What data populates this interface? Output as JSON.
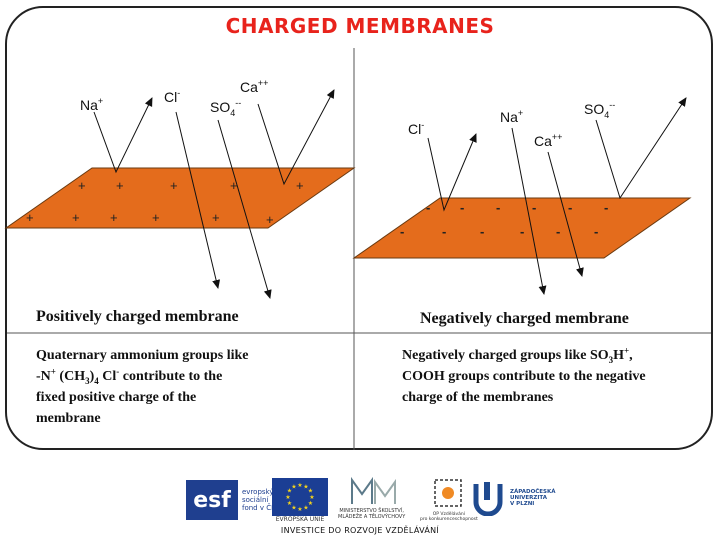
{
  "title": "CHARGED MEMBRANES",
  "left": {
    "caption": "Positively charged membrane",
    "desc_lines": [
      "Quaternary ammonium groups like",
      "contribute to the",
      "fixed positive charge of  the",
      "membrane"
    ],
    "desc_formula": {
      "n": "-N",
      "plus": "+",
      "ch": "(CH",
      "three": "3",
      "close": ")",
      "four": "4",
      "cl": "Cl",
      "minus": "-"
    },
    "ions": {
      "na": "Na",
      "na_charge": "+",
      "cl": "Cl",
      "cl_charge": "-",
      "so4": "SO",
      "so4_sub": "4",
      "so4_charge": "--",
      "ca": "Ca",
      "ca_charge": "++"
    },
    "charge_symbol": "+"
  },
  "right": {
    "caption": "Negatively charged membrane",
    "desc_line1_pre": "Negatively charged groups like SO",
    "desc_line1_sub": "3",
    "desc_line1_h": "H",
    "desc_line1_sup": "+",
    "desc_line1_post": ",",
    "desc_lines": [
      "COOH groups contribute to the negative",
      "charge of  the membranes"
    ],
    "ions": {
      "na": "Na",
      "na_charge": "+",
      "cl": "Cl",
      "cl_charge": "-",
      "so4": "SO",
      "so4_sub": "4",
      "so4_charge": "--",
      "ca": "Ca",
      "ca_charge": "++"
    },
    "charge_symbol": "-"
  },
  "footer": {
    "esf_logo": "esf",
    "esf_text": [
      "evropský",
      "sociální",
      "fond v ČR"
    ],
    "eu_label": "EVROPSKÁ UNIE",
    "msmt_label": [
      "MINISTERSTVO ŠKOLSTVÍ,",
      "MLÁDEŽE A TĚLOVÝCHOVY"
    ],
    "op_label": [
      "OP Vzdělávání",
      "pro konkurenceschopnost"
    ],
    "zcu_label": [
      "ZÁPADOČESKÁ",
      "UNIVERZITA",
      "V PLZNI"
    ],
    "tagline": "INVESTICE DO ROZVOJE VZDĚLÁVÁNÍ"
  },
  "colors": {
    "membrane": "#e46c1c",
    "title": "#e8231c",
    "eu_blue": "#1b3e94",
    "eu_star": "#f4d31c"
  }
}
